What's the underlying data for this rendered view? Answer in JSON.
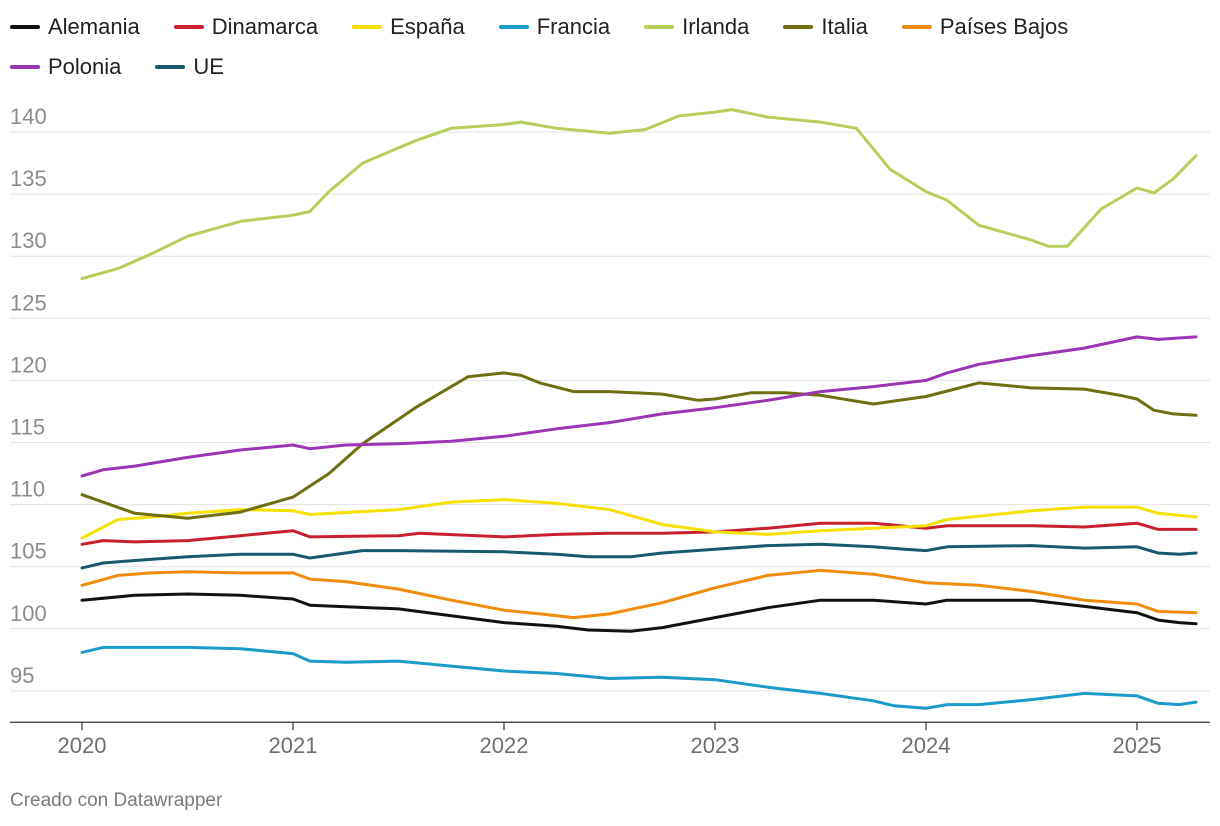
{
  "chart_data": {
    "type": "line",
    "title": "",
    "xlabel": "",
    "ylabel": "",
    "ylim": [
      92.8,
      142.5
    ],
    "yticks": [
      95,
      100,
      105,
      110,
      115,
      120,
      125,
      130,
      135,
      140
    ],
    "xticks": [
      "2020",
      "2021",
      "2022",
      "2023",
      "2024",
      "2025"
    ],
    "x_start": "2020-01",
    "x_end": "2025-04",
    "grid": true,
    "legend_position": "top-left",
    "series": [
      {
        "name": "Alemania",
        "color": "#111111",
        "points": [
          [
            2020.0,
            102.3
          ],
          [
            2020.25,
            102.7
          ],
          [
            2020.5,
            102.8
          ],
          [
            2020.75,
            102.7
          ],
          [
            2021.0,
            102.4
          ],
          [
            2021.08,
            101.9
          ],
          [
            2021.5,
            101.6
          ],
          [
            2022.0,
            100.5
          ],
          [
            2022.25,
            100.2
          ],
          [
            2022.4,
            99.9
          ],
          [
            2022.6,
            99.8
          ],
          [
            2022.75,
            100.1
          ],
          [
            2023.0,
            100.9
          ],
          [
            2023.25,
            101.7
          ],
          [
            2023.5,
            102.3
          ],
          [
            2023.75,
            102.3
          ],
          [
            2024.0,
            102.0
          ],
          [
            2024.1,
            102.3
          ],
          [
            2024.5,
            102.3
          ],
          [
            2024.75,
            101.8
          ],
          [
            2025.0,
            101.3
          ],
          [
            2025.1,
            100.7
          ],
          [
            2025.2,
            100.5
          ],
          [
            2025.28,
            100.4
          ]
        ]
      },
      {
        "name": "Dinamarca",
        "color": "#c8202e",
        "points": [
          [
            2020.0,
            106.8
          ],
          [
            2020.1,
            107.1
          ],
          [
            2020.25,
            107.0
          ],
          [
            2020.5,
            107.1
          ],
          [
            2020.75,
            107.5
          ],
          [
            2021.0,
            107.9
          ],
          [
            2021.08,
            107.4
          ],
          [
            2021.5,
            107.5
          ],
          [
            2021.6,
            107.7
          ],
          [
            2022.0,
            107.4
          ],
          [
            2022.25,
            107.6
          ],
          [
            2022.5,
            107.7
          ],
          [
            2022.75,
            107.7
          ],
          [
            2023.0,
            107.8
          ],
          [
            2023.25,
            108.1
          ],
          [
            2023.5,
            108.5
          ],
          [
            2023.75,
            108.5
          ],
          [
            2024.0,
            108.1
          ],
          [
            2024.1,
            108.3
          ],
          [
            2024.5,
            108.3
          ],
          [
            2024.75,
            108.2
          ],
          [
            2025.0,
            108.5
          ],
          [
            2025.1,
            108.0
          ],
          [
            2025.28,
            108.0
          ]
        ]
      },
      {
        "name": "España",
        "color": "#f5e000",
        "points": [
          [
            2020.0,
            107.3
          ],
          [
            2020.17,
            108.8
          ],
          [
            2020.33,
            109.0
          ],
          [
            2020.5,
            109.3
          ],
          [
            2020.75,
            109.6
          ],
          [
            2021.0,
            109.5
          ],
          [
            2021.08,
            109.2
          ],
          [
            2021.5,
            109.6
          ],
          [
            2021.75,
            110.2
          ],
          [
            2022.0,
            110.4
          ],
          [
            2022.25,
            110.1
          ],
          [
            2022.5,
            109.6
          ],
          [
            2022.75,
            108.4
          ],
          [
            2023.0,
            107.8
          ],
          [
            2023.25,
            107.6
          ],
          [
            2023.5,
            107.9
          ],
          [
            2023.75,
            108.1
          ],
          [
            2024.0,
            108.3
          ],
          [
            2024.1,
            108.8
          ],
          [
            2024.5,
            109.5
          ],
          [
            2024.75,
            109.8
          ],
          [
            2025.0,
            109.8
          ],
          [
            2025.1,
            109.3
          ],
          [
            2025.28,
            109.0
          ]
        ]
      },
      {
        "name": "Francia",
        "color": "#1a9bc8",
        "points": [
          [
            2020.0,
            98.1
          ],
          [
            2020.1,
            98.5
          ],
          [
            2020.25,
            98.5
          ],
          [
            2020.5,
            98.5
          ],
          [
            2020.75,
            98.4
          ],
          [
            2021.0,
            98.0
          ],
          [
            2021.08,
            97.4
          ],
          [
            2021.25,
            97.3
          ],
          [
            2021.5,
            97.4
          ],
          [
            2021.75,
            97.0
          ],
          [
            2022.0,
            96.6
          ],
          [
            2022.25,
            96.4
          ],
          [
            2022.5,
            96.0
          ],
          [
            2022.75,
            96.1
          ],
          [
            2023.0,
            95.9
          ],
          [
            2023.25,
            95.3
          ],
          [
            2023.5,
            94.8
          ],
          [
            2023.75,
            94.2
          ],
          [
            2023.85,
            93.8
          ],
          [
            2024.0,
            93.6
          ],
          [
            2024.1,
            93.9
          ],
          [
            2024.25,
            93.9
          ],
          [
            2024.5,
            94.3
          ],
          [
            2024.75,
            94.8
          ],
          [
            2025.0,
            94.6
          ],
          [
            2025.1,
            94.0
          ],
          [
            2025.2,
            93.9
          ],
          [
            2025.28,
            94.1
          ]
        ]
      },
      {
        "name": "Irlanda",
        "color": "#b5cf5a",
        "points": [
          [
            2020.0,
            128.2
          ],
          [
            2020.17,
            129.0
          ],
          [
            2020.33,
            130.2
          ],
          [
            2020.5,
            131.6
          ],
          [
            2020.75,
            132.8
          ],
          [
            2021.0,
            133.3
          ],
          [
            2021.08,
            133.6
          ],
          [
            2021.17,
            135.2
          ],
          [
            2021.33,
            137.5
          ],
          [
            2021.58,
            139.3
          ],
          [
            2021.75,
            140.3
          ],
          [
            2022.0,
            140.6
          ],
          [
            2022.08,
            140.8
          ],
          [
            2022.25,
            140.3
          ],
          [
            2022.5,
            139.9
          ],
          [
            2022.67,
            140.2
          ],
          [
            2022.83,
            141.3
          ],
          [
            2023.0,
            141.6
          ],
          [
            2023.08,
            141.8
          ],
          [
            2023.25,
            141.2
          ],
          [
            2023.5,
            140.8
          ],
          [
            2023.67,
            140.3
          ],
          [
            2023.83,
            137.0
          ],
          [
            2024.0,
            135.2
          ],
          [
            2024.1,
            134.5
          ],
          [
            2024.25,
            132.5
          ],
          [
            2024.5,
            131.3
          ],
          [
            2024.58,
            130.8
          ],
          [
            2024.67,
            130.8
          ],
          [
            2024.83,
            133.8
          ],
          [
            2025.0,
            135.5
          ],
          [
            2025.08,
            135.1
          ],
          [
            2025.17,
            136.2
          ],
          [
            2025.28,
            138.1
          ]
        ]
      },
      {
        "name": "Italia",
        "color": "#6f6e10",
        "points": [
          [
            2020.0,
            110.8
          ],
          [
            2020.25,
            109.3
          ],
          [
            2020.5,
            108.9
          ],
          [
            2020.75,
            109.4
          ],
          [
            2021.0,
            110.6
          ],
          [
            2021.17,
            112.5
          ],
          [
            2021.33,
            114.9
          ],
          [
            2021.58,
            117.8
          ],
          [
            2021.83,
            120.3
          ],
          [
            2022.0,
            120.6
          ],
          [
            2022.08,
            120.4
          ],
          [
            2022.17,
            119.8
          ],
          [
            2022.33,
            119.1
          ],
          [
            2022.5,
            119.1
          ],
          [
            2022.75,
            118.9
          ],
          [
            2022.92,
            118.4
          ],
          [
            2023.0,
            118.5
          ],
          [
            2023.17,
            119.0
          ],
          [
            2023.33,
            119.0
          ],
          [
            2023.5,
            118.8
          ],
          [
            2023.75,
            118.1
          ],
          [
            2024.0,
            118.7
          ],
          [
            2024.25,
            119.8
          ],
          [
            2024.5,
            119.4
          ],
          [
            2024.75,
            119.3
          ],
          [
            2024.92,
            118.8
          ],
          [
            2025.0,
            118.5
          ],
          [
            2025.08,
            117.6
          ],
          [
            2025.17,
            117.3
          ],
          [
            2025.28,
            117.2
          ]
        ]
      },
      {
        "name": "Países Bajos",
        "color": "#f28a0a",
        "points": [
          [
            2020.0,
            103.5
          ],
          [
            2020.17,
            104.3
          ],
          [
            2020.33,
            104.5
          ],
          [
            2020.5,
            104.6
          ],
          [
            2020.75,
            104.5
          ],
          [
            2021.0,
            104.5
          ],
          [
            2021.08,
            104.0
          ],
          [
            2021.25,
            103.8
          ],
          [
            2021.5,
            103.2
          ],
          [
            2021.75,
            102.3
          ],
          [
            2022.0,
            101.5
          ],
          [
            2022.17,
            101.2
          ],
          [
            2022.33,
            100.9
          ],
          [
            2022.5,
            101.2
          ],
          [
            2022.75,
            102.1
          ],
          [
            2023.0,
            103.3
          ],
          [
            2023.25,
            104.3
          ],
          [
            2023.5,
            104.7
          ],
          [
            2023.75,
            104.4
          ],
          [
            2024.0,
            103.7
          ],
          [
            2024.25,
            103.5
          ],
          [
            2024.5,
            103.0
          ],
          [
            2024.75,
            102.3
          ],
          [
            2025.0,
            102.0
          ],
          [
            2025.1,
            101.4
          ],
          [
            2025.28,
            101.3
          ]
        ]
      },
      {
        "name": "Polonia",
        "color": "#9a35b5",
        "points": [
          [
            2020.0,
            112.3
          ],
          [
            2020.1,
            112.8
          ],
          [
            2020.25,
            113.1
          ],
          [
            2020.5,
            113.8
          ],
          [
            2020.75,
            114.4
          ],
          [
            2021.0,
            114.8
          ],
          [
            2021.08,
            114.5
          ],
          [
            2021.25,
            114.8
          ],
          [
            2021.5,
            114.9
          ],
          [
            2021.75,
            115.1
          ],
          [
            2022.0,
            115.5
          ],
          [
            2022.25,
            116.1
          ],
          [
            2022.5,
            116.6
          ],
          [
            2022.75,
            117.3
          ],
          [
            2023.0,
            117.8
          ],
          [
            2023.25,
            118.4
          ],
          [
            2023.5,
            119.1
          ],
          [
            2023.75,
            119.5
          ],
          [
            2024.0,
            120.0
          ],
          [
            2024.1,
            120.6
          ],
          [
            2024.25,
            121.3
          ],
          [
            2024.5,
            122.0
          ],
          [
            2024.75,
            122.6
          ],
          [
            2025.0,
            123.5
          ],
          [
            2025.1,
            123.3
          ],
          [
            2025.28,
            123.5
          ]
        ]
      },
      {
        "name": "UE",
        "color": "#18596e",
        "points": [
          [
            2020.0,
            104.9
          ],
          [
            2020.1,
            105.3
          ],
          [
            2020.25,
            105.5
          ],
          [
            2020.5,
            105.8
          ],
          [
            2020.75,
            106.0
          ],
          [
            2021.0,
            106.0
          ],
          [
            2021.08,
            105.7
          ],
          [
            2021.33,
            106.3
          ],
          [
            2021.5,
            106.3
          ],
          [
            2022.0,
            106.2
          ],
          [
            2022.25,
            106.0
          ],
          [
            2022.4,
            105.8
          ],
          [
            2022.6,
            105.8
          ],
          [
            2022.75,
            106.1
          ],
          [
            2023.0,
            106.4
          ],
          [
            2023.25,
            106.7
          ],
          [
            2023.5,
            106.8
          ],
          [
            2023.75,
            106.6
          ],
          [
            2023.9,
            106.4
          ],
          [
            2024.0,
            106.3
          ],
          [
            2024.1,
            106.6
          ],
          [
            2024.5,
            106.7
          ],
          [
            2024.75,
            106.5
          ],
          [
            2025.0,
            106.6
          ],
          [
            2025.1,
            106.1
          ],
          [
            2025.2,
            106.0
          ],
          [
            2025.28,
            106.1
          ]
        ]
      }
    ]
  },
  "footer": {
    "credit": "Creado con Datawrapper"
  }
}
